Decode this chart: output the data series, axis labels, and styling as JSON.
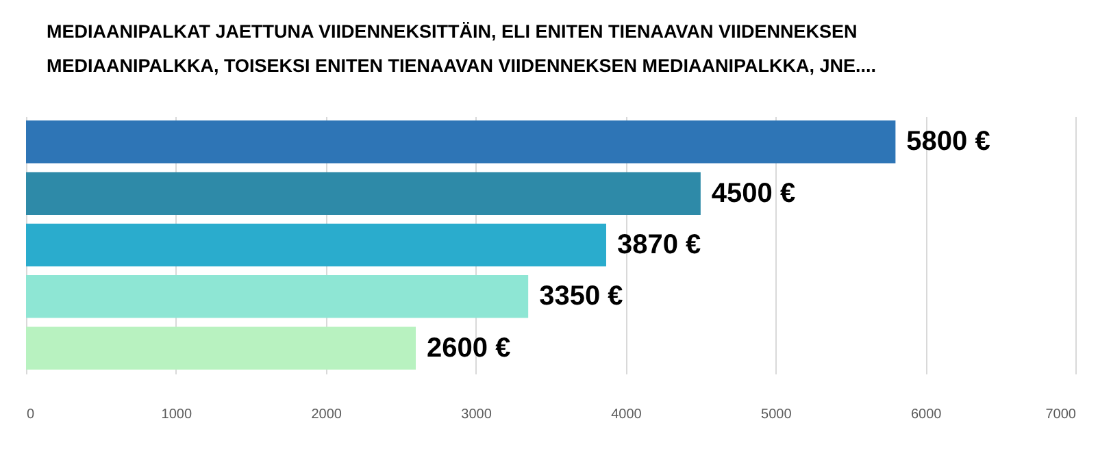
{
  "chart_data": {
    "type": "bar",
    "orientation": "horizontal",
    "title": "MEDIAANIPALKAT JAETTUNA VIIDENNEKSITTÄIN, ELI ENITEN TIENAAVAN VIIDENNEKSEN MEDIAANIPALKKA, TOISEKSI ENITEN TIENAAVAN VIIDENNEKSEN MEDIAANIPALKKA, JNE....",
    "categories": [
      null,
      null,
      null,
      null,
      null
    ],
    "values": [
      5800,
      4500,
      3870,
      3350,
      2600
    ],
    "value_labels": [
      "5800 €",
      "4500 €",
      "3870 €",
      "3350 €",
      "2600 €"
    ],
    "colors": [
      "#2e75b6",
      "#2e8aa8",
      "#2aaccd",
      "#8ee6d4",
      "#b8f2c0"
    ],
    "xlim": [
      0,
      7000
    ],
    "xticks": [
      0,
      1000,
      2000,
      3000,
      4000,
      5000,
      6000,
      7000
    ],
    "grid": "x"
  }
}
